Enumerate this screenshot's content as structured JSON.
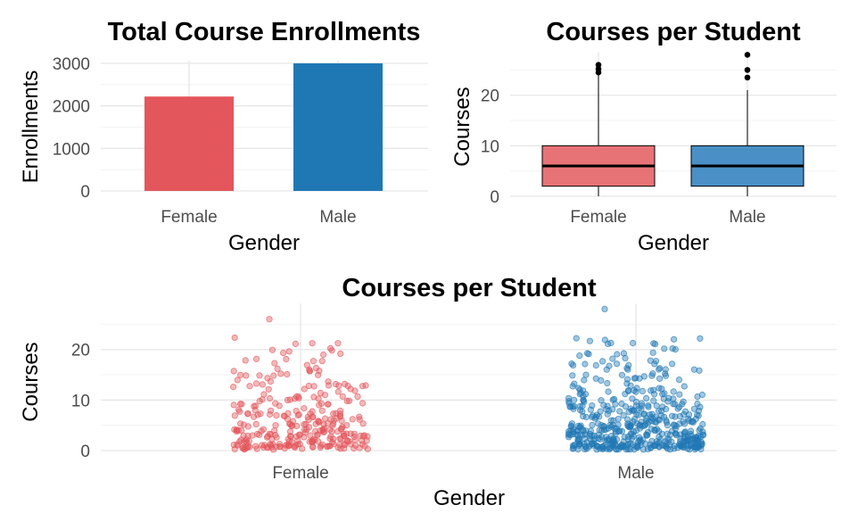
{
  "colors": {
    "female": "#e3565b",
    "male": "#1f78b4"
  },
  "chart_data": [
    {
      "type": "bar",
      "title": "Total Course Enrollments",
      "xlabel": "Gender",
      "ylabel": "Enrollments",
      "categories": [
        "Female",
        "Male"
      ],
      "values": [
        2220,
        3000
      ],
      "ylim": [
        0,
        3000
      ],
      "yticks": [
        0,
        1000,
        2000,
        3000
      ],
      "grid": true,
      "legend": "none"
    },
    {
      "type": "box",
      "title": "Courses per Student",
      "xlabel": "Gender",
      "ylabel": "Courses",
      "categories": [
        "Female",
        "Male"
      ],
      "boxes": [
        {
          "category": "Female",
          "min": 0,
          "q1": 2,
          "median": 6,
          "q3": 10,
          "whisker_high": 24,
          "outliers": [
            24.5,
            25.2,
            26
          ]
        },
        {
          "category": "Male",
          "min": 0,
          "q1": 2,
          "median": 6,
          "q3": 10,
          "whisker_high": 21,
          "outliers": [
            23.5,
            25,
            28
          ]
        }
      ],
      "ylim": [
        0,
        28
      ],
      "yticks": [
        0,
        10,
        20
      ],
      "grid": true,
      "legend": "none"
    },
    {
      "type": "scatter",
      "title": "Courses per Student",
      "xlabel": "Gender",
      "ylabel": "Courses",
      "categories": [
        "Female",
        "Male"
      ],
      "series": [
        {
          "category": "Female",
          "n": 300,
          "max": 26
        },
        {
          "category": "Male",
          "n": 500,
          "max": 28
        }
      ],
      "ylim": [
        0,
        28
      ],
      "yticks": [
        0,
        10,
        20
      ],
      "grid": true,
      "legend": "none"
    }
  ]
}
